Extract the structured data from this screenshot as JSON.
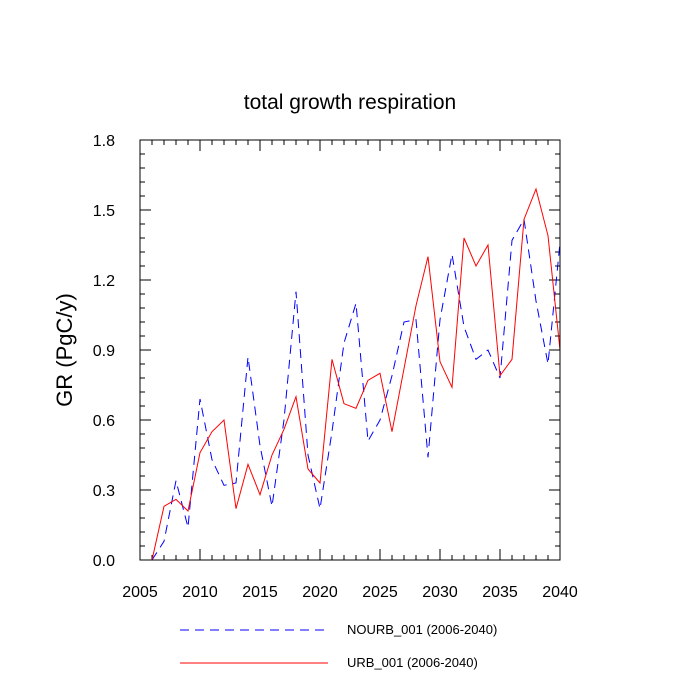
{
  "chart_data": {
    "type": "line",
    "title": "total growth respiration",
    "xlabel": "",
    "ylabel": "GR  (PgC/y)",
    "xlim": [
      2005,
      2040
    ],
    "ylim": [
      0.0,
      1.8
    ],
    "xticks": [
      2005,
      2010,
      2015,
      2020,
      2025,
      2030,
      2035,
      2040
    ],
    "yticks": [
      0.0,
      0.3,
      0.6,
      0.9,
      1.2,
      1.5,
      1.8
    ],
    "ytick_labels": [
      "0.0",
      "0.3",
      "0.6",
      "0.9",
      "1.2",
      "1.5",
      "1.8"
    ],
    "grid": false,
    "legend_position": "bottom",
    "x": [
      2006,
      2007,
      2008,
      2009,
      2010,
      2011,
      2012,
      2013,
      2014,
      2015,
      2016,
      2017,
      2018,
      2019,
      2020,
      2021,
      2022,
      2023,
      2024,
      2025,
      2026,
      2027,
      2028,
      2029,
      2030,
      2031,
      2032,
      2033,
      2034,
      2035,
      2036,
      2037,
      2038,
      2039,
      2040
    ],
    "series": [
      {
        "name": "NOURB_001 (2006-2040)",
        "style": "dashed",
        "color": "#0000ff",
        "values": [
          0.0,
          0.08,
          0.34,
          0.14,
          0.69,
          0.43,
          0.32,
          0.33,
          0.87,
          0.49,
          0.23,
          0.6,
          1.15,
          0.45,
          0.22,
          0.55,
          0.93,
          1.1,
          0.51,
          0.6,
          0.79,
          1.02,
          1.03,
          0.44,
          1.03,
          1.31,
          1.0,
          0.86,
          0.9,
          0.78,
          1.37,
          1.46,
          1.11,
          0.84,
          1.36
        ]
      },
      {
        "name": "URB_001 (2006-2040)",
        "style": "solid",
        "color": "#ff0000",
        "values": [
          0.0,
          0.23,
          0.26,
          0.21,
          0.46,
          0.55,
          0.6,
          0.22,
          0.41,
          0.28,
          0.45,
          0.56,
          0.7,
          0.39,
          0.33,
          0.86,
          0.67,
          0.65,
          0.77,
          0.8,
          0.55,
          0.82,
          1.09,
          1.3,
          0.85,
          0.74,
          1.38,
          1.26,
          1.35,
          0.79,
          0.86,
          1.46,
          1.59,
          1.39,
          0.9
        ]
      }
    ]
  }
}
